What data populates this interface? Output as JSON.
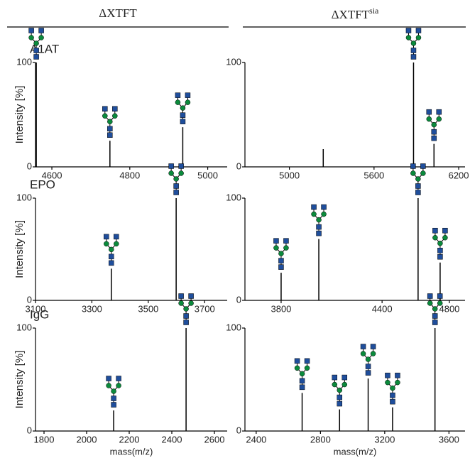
{
  "header": [
    {
      "text": "ΔXTFT"
    },
    {
      "text": "ΔXTFT",
      "superscript": "sia"
    }
  ],
  "chart_data": [
    {
      "type": "bar",
      "title": "A1AT",
      "ylabel": "Intensity [%]",
      "x": [
        4560,
        4749,
        4936
      ],
      "values": [
        100,
        25,
        38
      ],
      "xlim": [
        4558,
        5050
      ],
      "xticks": [
        4600,
        4800,
        5000
      ],
      "ylim": [
        0,
        100
      ],
      "yticks": [
        0,
        100
      ],
      "color": "#000000"
    },
    {
      "type": "bar",
      "x": [
        5240,
        5880,
        6025
      ],
      "values": [
        17,
        100,
        22
      ],
      "xlim": [
        4685,
        6245
      ],
      "xticks": [
        5000,
        5600,
        6200
      ],
      "ylim": [
        0,
        100
      ],
      "yticks": [
        0,
        100
      ],
      "color": "#000000"
    },
    {
      "type": "bar",
      "title": "EPO",
      "ylabel": "Intensity [%]",
      "x": [
        3369,
        3599
      ],
      "values": [
        31,
        100
      ],
      "xlim": [
        3100,
        3780
      ],
      "xticks": [
        3100,
        3300,
        3500,
        3700
      ],
      "ylim": [
        0,
        100
      ],
      "yticks": [
        0,
        100
      ],
      "color": "#000000"
    },
    {
      "type": "bar",
      "x": [
        3800,
        4024,
        4614,
        4745
      ],
      "values": [
        27,
        60,
        100,
        37
      ],
      "xlim": [
        3585,
        4893
      ],
      "xticks": [
        3800,
        4400,
        4800
      ],
      "ylim": [
        0,
        100
      ],
      "yticks": [
        0,
        100
      ],
      "color": "#000000"
    },
    {
      "type": "bar",
      "title": "IgG",
      "ylabel": "Intensity [%]",
      "xlabel": "mass(m/z)",
      "x": [
        2127,
        2467
      ],
      "values": [
        20,
        100
      ],
      "xlim": [
        1760,
        2660
      ],
      "xticks": [
        1800,
        2000,
        2200,
        2400,
        2600
      ],
      "ylim": [
        0,
        100
      ],
      "yticks": [
        0,
        100
      ],
      "color": "#000000"
    },
    {
      "type": "bar",
      "xlabel": "mass(m/z)",
      "x": [
        2686,
        2919,
        3097,
        3249,
        3513
      ],
      "values": [
        37,
        21,
        51,
        23,
        100
      ],
      "xlim": [
        2330,
        3700
      ],
      "xticks": [
        2400,
        2800,
        3200,
        3600
      ],
      "ylim": [
        0,
        100
      ],
      "yticks": [
        0,
        100
      ],
      "color": "#000000"
    }
  ]
}
